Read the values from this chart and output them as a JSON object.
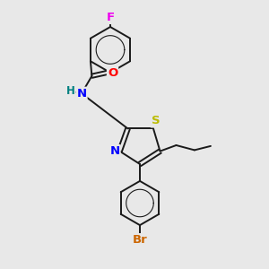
{
  "background_color": "#e8e8e8",
  "bond_color": "#1a1a1a",
  "atom_colors": {
    "F": "#ee00ee",
    "O": "#ff0000",
    "N": "#0000ff",
    "S": "#bbbb00",
    "Br": "#cc6600",
    "H": "#008080",
    "C": "#1a1a1a"
  }
}
